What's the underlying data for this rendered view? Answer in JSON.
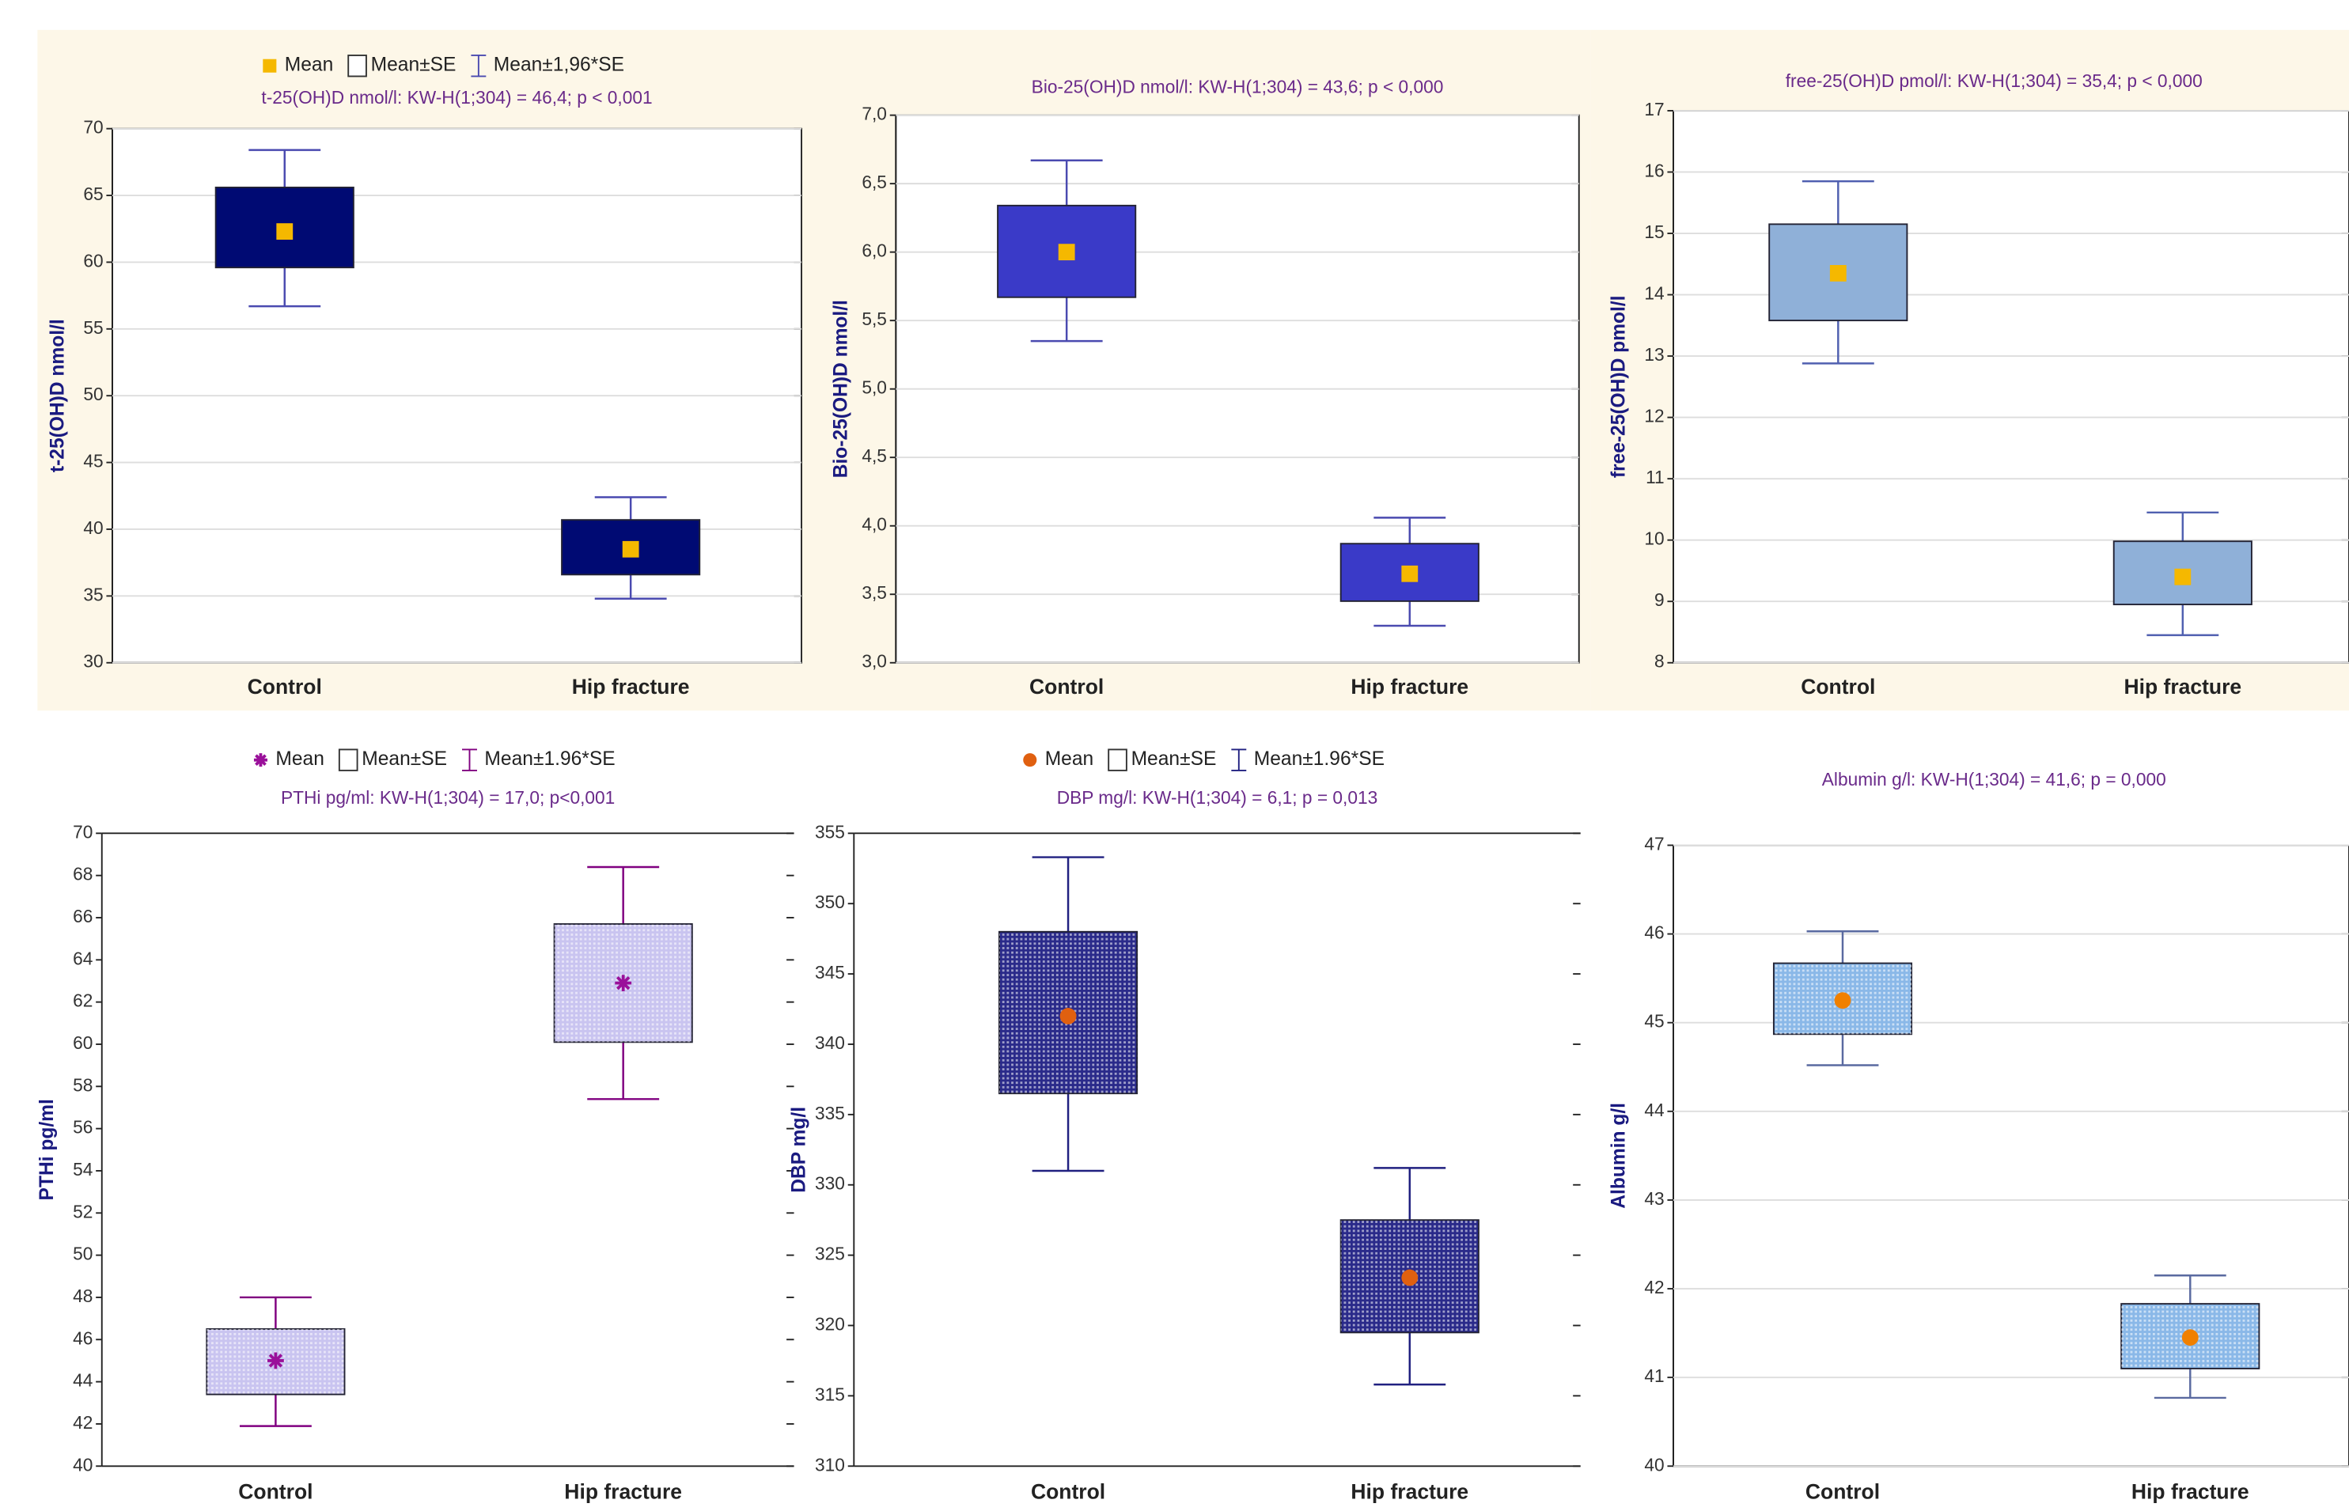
{
  "chart_data": [
    {
      "type": "box",
      "title": "t-25(OH)D nmol/l:  KW-H(1;304) = 46,4; p < 0,001",
      "ylabel": "t-25(OH)D nmol/l",
      "legend": [
        "Mean",
        "Mean±SE",
        "Mean±1,96*SE"
      ],
      "categories": [
        "Control",
        "Hip fracture"
      ],
      "mean": [
        62.3,
        38.5
      ],
      "se_low": [
        59.6,
        36.6
      ],
      "se_high": [
        65.6,
        40.7
      ],
      "ci_low": [
        56.7,
        34.8
      ],
      "ci_high": [
        68.4,
        42.4
      ],
      "box_color": "#000a73",
      "mean_color": "#f5b800",
      "whisker_color": "#4a4ab0",
      "marker": "square",
      "ylim": [
        30,
        70
      ],
      "yticks": [
        30,
        35,
        40,
        45,
        50,
        55,
        60,
        65,
        70
      ],
      "grid": true
    },
    {
      "type": "box",
      "title": "Bio-25(OH)D nmol/l:  KW-H(1;304) = 43,6; p < 0,000",
      "ylabel": "Bio-25(OH)D nmol/l",
      "categories": [
        "Control",
        "Hip fracture"
      ],
      "mean": [
        6.0,
        3.65
      ],
      "se_low": [
        5.67,
        3.45
      ],
      "se_high": [
        6.34,
        3.87
      ],
      "ci_low": [
        5.35,
        3.27
      ],
      "ci_high": [
        6.67,
        4.06
      ],
      "box_color": "#3a3ac8",
      "mean_color": "#f5b800",
      "whisker_color": "#4a4ab0",
      "marker": "square",
      "ylim": [
        3,
        7
      ],
      "yticks": [
        {
          "value": 3,
          "label": "3,0"
        },
        {
          "value": 3.5,
          "label": "3,5"
        },
        {
          "value": 4,
          "label": "4,0"
        },
        {
          "value": 4.5,
          "label": "4,5"
        },
        {
          "value": 5,
          "label": "5,0"
        },
        {
          "value": 5.5,
          "label": "5,5"
        },
        {
          "value": 6,
          "label": "6,0"
        },
        {
          "value": 6.5,
          "label": "6,5"
        },
        {
          "value": 7,
          "label": "7,0"
        }
      ],
      "grid": true
    },
    {
      "type": "box",
      "title": "free-25(OH)D pmol/l:  KW-H(1;304) = 35,4; p < 0,000",
      "ylabel": "free-25(OH)D pmol/l",
      "categories": [
        "Control",
        "Hip fracture"
      ],
      "mean": [
        14.35,
        9.4
      ],
      "se_low": [
        13.58,
        8.95
      ],
      "se_high": [
        15.15,
        9.98
      ],
      "ci_low": [
        12.88,
        8.45
      ],
      "ci_high": [
        15.85,
        10.45
      ],
      "box_color": "#8fb0d8",
      "mean_color": "#f5b800",
      "whisker_color": "#5060b0",
      "marker": "square",
      "ylim": [
        8,
        17
      ],
      "yticks": [
        8,
        9,
        10,
        11,
        12,
        13,
        14,
        15,
        16,
        17
      ],
      "grid": true
    },
    {
      "type": "box",
      "title": "PTHi pg/ml:  KW-H(1;304) = 17,0; p<0,001",
      "ylabel": "PTHi pg/ml",
      "legend": [
        "Mean",
        "Mean±SE",
        "Mean±1.96*SE"
      ],
      "categories": [
        "Control",
        "Hip fracture"
      ],
      "mean": [
        45,
        62.9
      ],
      "se_low": [
        43.4,
        60.1
      ],
      "se_high": [
        46.5,
        65.7
      ],
      "ci_low": [
        41.9,
        57.4
      ],
      "ci_high": [
        48,
        68.4
      ],
      "box_color": "#c9c4f0",
      "mean_color": "#9a109a",
      "whisker_color": "#800080",
      "marker": "star",
      "ylim": [
        40,
        70
      ],
      "yticks": [
        40,
        42,
        44,
        46,
        48,
        50,
        52,
        54,
        56,
        58,
        60,
        62,
        64,
        66,
        68,
        70
      ],
      "grid": false
    },
    {
      "type": "box",
      "title": "DBP mg/l:  KW-H(1;304) = 6,1; p = 0,013",
      "ylabel": "DBP mg/l",
      "legend": [
        "Mean",
        "Mean±SE",
        "Mean±1.96*SE"
      ],
      "categories": [
        "Control",
        "Hip fracture"
      ],
      "mean": [
        342,
        323.4
      ],
      "se_low": [
        336.5,
        319.5
      ],
      "se_high": [
        348,
        327.5
      ],
      "ci_low": [
        331,
        315.8
      ],
      "ci_high": [
        353.3,
        331.2
      ],
      "box_color": "#2a2a8a",
      "mean_color": "#e06010",
      "whisker_color": "#202080",
      "marker": "circle",
      "ylim": [
        310,
        355
      ],
      "yticks": [
        310,
        315,
        320,
        325,
        330,
        335,
        340,
        345,
        350,
        355
      ],
      "grid": false
    },
    {
      "type": "box",
      "title": "Albumin g/l:  KW-H(1;304) = 41,6; p = 0,000",
      "ylabel": "Albumin g/l",
      "categories": [
        "Control",
        "Hip fracture"
      ],
      "mean": [
        45.25,
        41.45
      ],
      "se_low": [
        44.87,
        41.1
      ],
      "se_high": [
        45.67,
        41.83
      ],
      "ci_low": [
        44.52,
        40.77
      ],
      "ci_high": [
        46.03,
        42.15
      ],
      "box_color": "#8ab8e8",
      "mean_color": "#f08000",
      "whisker_color": "#5a6aa0",
      "marker": "circle",
      "ylim": [
        40,
        47
      ],
      "yticks": [
        40,
        41,
        42,
        43,
        44,
        45,
        46,
        47
      ],
      "grid": true
    }
  ]
}
